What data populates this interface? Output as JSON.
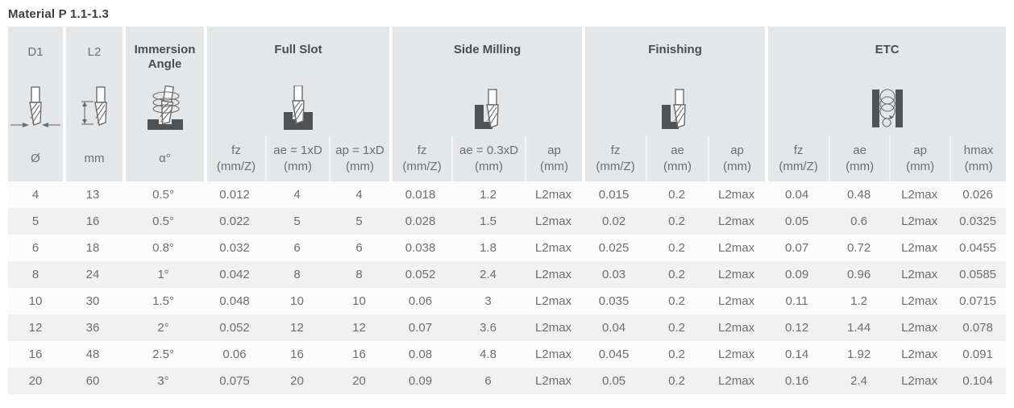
{
  "title": "Material P 1.1-1.3",
  "colors": {
    "header_bg": "#e5e6e7",
    "row_alt_bg": "#f1f1f2",
    "icon_dark": "#515254",
    "body_text": "#6d6e70",
    "heading_text": "#4b4d51"
  },
  "header": {
    "simple_groups": [
      {
        "label": "D1",
        "unit": "Ø",
        "icon": "endmill-diameter-icon"
      },
      {
        "label": "L2",
        "unit": "mm",
        "icon": "endmill-flute-length-icon"
      },
      {
        "label": "Immersion Angle",
        "unit": "α°",
        "icon": "ramping-angle-icon"
      }
    ],
    "groups": [
      {
        "label": "Full Slot",
        "icon": "full-slot-icon",
        "cols": [
          [
            "fz",
            "(mm/Z)"
          ],
          [
            "ae = 1xD",
            "(mm)"
          ],
          [
            "ap = 1xD",
            "(mm)"
          ]
        ]
      },
      {
        "label": "Side Milling",
        "icon": "side-milling-icon",
        "cols": [
          [
            "fz",
            "(mm/Z)"
          ],
          [
            "ae = 0.3xD",
            "(mm)"
          ],
          [
            "ap",
            "(mm)"
          ]
        ]
      },
      {
        "label": "Finishing",
        "icon": "finishing-icon",
        "cols": [
          [
            "fz",
            "(mm/Z)"
          ],
          [
            "ae",
            "(mm)"
          ],
          [
            "ap",
            "(mm)"
          ]
        ]
      },
      {
        "label": "ETC",
        "icon": "helical-interpolation-icon",
        "cols": [
          [
            "fz",
            "(mm/Z)"
          ],
          [
            "ae",
            "(mm)"
          ],
          [
            "ap",
            "(mm)"
          ],
          [
            "hmax",
            "(mm)"
          ]
        ]
      }
    ]
  },
  "rows": [
    [
      "4",
      "13",
      "0.5°",
      "0.012",
      "4",
      "4",
      "0.018",
      "1.2",
      "L2max",
      "0.015",
      "0.2",
      "L2max",
      "0.04",
      "0.48",
      "L2max",
      "0.026"
    ],
    [
      "5",
      "16",
      "0.5°",
      "0.022",
      "5",
      "5",
      "0.028",
      "1.5",
      "L2max",
      "0.02",
      "0.2",
      "L2max",
      "0.05",
      "0.6",
      "L2max",
      "0.0325"
    ],
    [
      "6",
      "18",
      "0.8°",
      "0.032",
      "6",
      "6",
      "0.038",
      "1.8",
      "L2max",
      "0.025",
      "0.2",
      "L2max",
      "0.07",
      "0.72",
      "L2max",
      "0.0455"
    ],
    [
      "8",
      "24",
      "1°",
      "0.042",
      "8",
      "8",
      "0.052",
      "2.4",
      "L2max",
      "0.03",
      "0.2",
      "L2max",
      "0.09",
      "0.96",
      "L2max",
      "0.0585"
    ],
    [
      "10",
      "30",
      "1.5°",
      "0.048",
      "10",
      "10",
      "0.06",
      "3",
      "L2max",
      "0.035",
      "0.2",
      "L2max",
      "0.11",
      "1.2",
      "L2max",
      "0.0715"
    ],
    [
      "12",
      "36",
      "2°",
      "0.052",
      "12",
      "12",
      "0.07",
      "3.6",
      "L2max",
      "0.04",
      "0.2",
      "L2max",
      "0.12",
      "1.44",
      "L2max",
      "0.078"
    ],
    [
      "16",
      "48",
      "2.5°",
      "0.06",
      "16",
      "16",
      "0.08",
      "4.8",
      "L2max",
      "0.045",
      "0.2",
      "L2max",
      "0.14",
      "1.92",
      "L2max",
      "0.091"
    ],
    [
      "20",
      "60",
      "3°",
      "0.075",
      "20",
      "20",
      "0.09",
      "6",
      "L2max",
      "0.05",
      "0.2",
      "L2max",
      "0.16",
      "2.4",
      "L2max",
      "0.104"
    ]
  ]
}
